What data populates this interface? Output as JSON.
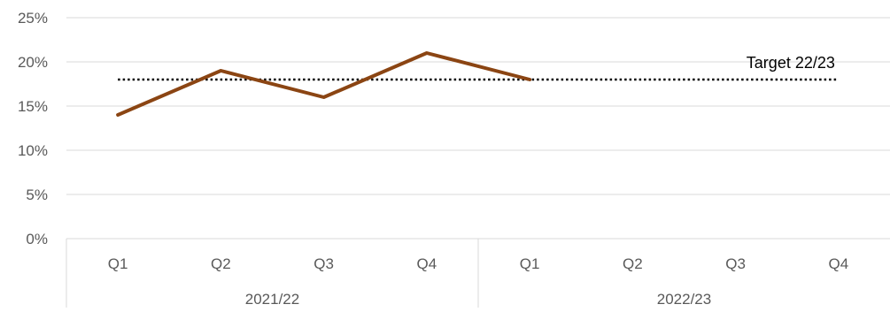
{
  "chart_data": {
    "type": "line",
    "title": "",
    "xlabel": "",
    "ylabel": "",
    "ylim": [
      0,
      25
    ],
    "yticks": [
      "0%",
      "5%",
      "10%",
      "15%",
      "20%",
      "25%"
    ],
    "ytick_values": [
      0,
      5,
      10,
      15,
      20,
      25
    ],
    "grid": true,
    "categories": [
      "Q1",
      "Q2",
      "Q3",
      "Q4",
      "Q1",
      "Q2",
      "Q3",
      "Q4"
    ],
    "category_groups": [
      {
        "label": "2021/22",
        "span": 4
      },
      {
        "label": "2022/23",
        "span": 4
      }
    ],
    "series": [
      {
        "values": [
          14,
          19,
          16,
          21,
          18,
          null,
          null,
          null
        ],
        "color": "#8B4513"
      }
    ],
    "reference_line": {
      "label": "Target 22/23",
      "value": 18,
      "style": "dotted",
      "color": "#000000"
    },
    "legend": "none"
  }
}
